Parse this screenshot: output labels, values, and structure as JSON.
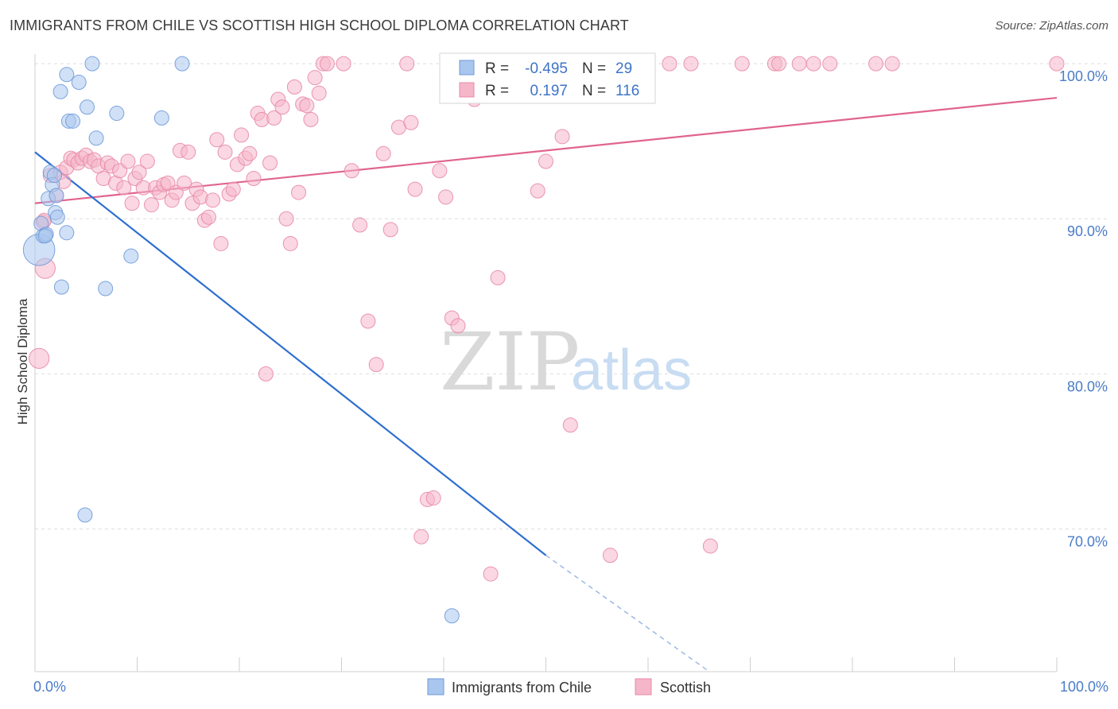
{
  "header": {
    "title": "IMMIGRANTS FROM CHILE VS SCOTTISH HIGH SCHOOL DIPLOMA CORRELATION CHART",
    "source": "Source: ZipAtlas.com"
  },
  "watermark": {
    "zip": "ZIP",
    "atlas": "atlas"
  },
  "stats": {
    "r_label": "R =",
    "n_label": "N =",
    "rows": [
      {
        "r": "-0.495",
        "n": "29",
        "color": "#a9c6ee"
      },
      {
        "r": "0.197",
        "n": "116",
        "color": "#f6b6ca"
      }
    ]
  },
  "chart_data": {
    "type": "scatter",
    "title": "IMMIGRANTS FROM CHILE VS SCOTTISH HIGH SCHOOL DIPLOMA CORRELATION CHART",
    "xlabel": "",
    "ylabel": "High School Diploma",
    "xlim": [
      0,
      100
    ],
    "ylim": [
      60.8,
      101.8
    ],
    "x_tick_labels": [
      "0.0%",
      "100.0%"
    ],
    "y_ticks": [
      {
        "value": 70,
        "label": "70.0%"
      },
      {
        "value": 80,
        "label": "80.0%"
      },
      {
        "value": 90,
        "label": "90.0%"
      },
      {
        "value": 100,
        "label": "100.0%"
      }
    ],
    "grid": true,
    "legend_position": "bottom-center",
    "series": [
      {
        "name": "Immigrants from Chile",
        "color": "#a9c6ee",
        "stroke": "#6f9ad8",
        "trend_color": "#2e6fd0",
        "trend": {
          "x0": 0,
          "y0": 94.3,
          "x1": 50,
          "y1": 68.3,
          "x_dash_end": 66,
          "y_dash_end": 60.8
        },
        "points": [
          [
            0.4,
            88.0,
            2.2
          ],
          [
            0.6,
            89.7,
            1
          ],
          [
            0.8,
            88.9,
            1
          ],
          [
            1.1,
            89.0,
            1
          ],
          [
            1.3,
            91.3,
            1
          ],
          [
            1.5,
            93.0,
            1
          ],
          [
            1.7,
            92.2,
            1
          ],
          [
            1.9,
            92.8,
            1
          ],
          [
            2.0,
            90.4,
            1
          ],
          [
            2.1,
            91.5,
            1
          ],
          [
            2.2,
            90.1,
            1
          ],
          [
            2.5,
            98.2,
            1
          ],
          [
            2.6,
            85.6,
            1
          ],
          [
            3.1,
            99.3,
            1
          ],
          [
            3.1,
            89.1,
            1
          ],
          [
            3.3,
            96.3,
            1
          ],
          [
            3.7,
            96.3,
            1
          ],
          [
            4.3,
            98.8,
            1
          ],
          [
            4.9,
            70.9,
            1
          ],
          [
            5.1,
            97.2,
            1
          ],
          [
            5.6,
            100.0,
            1
          ],
          [
            6.0,
            95.2,
            1
          ],
          [
            6.9,
            85.5,
            1
          ],
          [
            8.0,
            96.8,
            1
          ],
          [
            9.4,
            87.6,
            1
          ],
          [
            12.4,
            96.5,
            1
          ],
          [
            14.4,
            100.0,
            1
          ],
          [
            40.8,
            64.4,
            1
          ],
          [
            1.0,
            88.9,
            1
          ]
        ]
      },
      {
        "name": "Scottish",
        "color": "#f6b6ca",
        "stroke": "#e88aa8",
        "trend_color": "#e0648f",
        "trend": {
          "x0": 0,
          "y0": 91.0,
          "x1": 100,
          "y1": 97.8
        },
        "points": [
          [
            0.4,
            81.0,
            1.4
          ],
          [
            0.8,
            89.8,
            1
          ],
          [
            1.0,
            86.8,
            1.4
          ],
          [
            1.5,
            92.8,
            1
          ],
          [
            2.1,
            91.5,
            1
          ],
          [
            2.5,
            93.0,
            1
          ],
          [
            2.8,
            92.4,
            1
          ],
          [
            3.1,
            93.3,
            1
          ],
          [
            3.5,
            93.9,
            1
          ],
          [
            3.8,
            93.8,
            1
          ],
          [
            4.2,
            93.6,
            1
          ],
          [
            4.6,
            93.9,
            1
          ],
          [
            5.0,
            94.1,
            1
          ],
          [
            5.4,
            93.7,
            1
          ],
          [
            5.8,
            93.8,
            1
          ],
          [
            6.2,
            93.4,
            1
          ],
          [
            6.7,
            92.6,
            1
          ],
          [
            7.1,
            93.6,
            1
          ],
          [
            7.5,
            93.4,
            1
          ],
          [
            7.9,
            92.3,
            1
          ],
          [
            8.3,
            93.1,
            1
          ],
          [
            8.7,
            92.0,
            1
          ],
          [
            9.1,
            93.7,
            1
          ],
          [
            9.5,
            91.0,
            1
          ],
          [
            9.8,
            92.6,
            1
          ],
          [
            10.2,
            93.0,
            1
          ],
          [
            10.6,
            92.0,
            1
          ],
          [
            11.0,
            93.7,
            1
          ],
          [
            11.4,
            90.9,
            1
          ],
          [
            11.8,
            92.0,
            1
          ],
          [
            12.2,
            91.7,
            1
          ],
          [
            12.6,
            92.2,
            1
          ],
          [
            13.0,
            92.3,
            1
          ],
          [
            13.4,
            91.2,
            1
          ],
          [
            13.8,
            91.7,
            1
          ],
          [
            14.2,
            94.4,
            1
          ],
          [
            14.6,
            92.3,
            1
          ],
          [
            15.0,
            94.3,
            1
          ],
          [
            15.4,
            91.0,
            1
          ],
          [
            15.8,
            91.9,
            1
          ],
          [
            16.2,
            91.4,
            1
          ],
          [
            16.6,
            89.9,
            1
          ],
          [
            17.0,
            90.1,
            1
          ],
          [
            17.4,
            91.2,
            1
          ],
          [
            17.8,
            95.1,
            1
          ],
          [
            18.2,
            88.4,
            1
          ],
          [
            18.6,
            94.3,
            1
          ],
          [
            19.0,
            91.6,
            1
          ],
          [
            19.4,
            91.9,
            1
          ],
          [
            19.8,
            93.5,
            1
          ],
          [
            20.2,
            95.4,
            1
          ],
          [
            20.6,
            93.9,
            1
          ],
          [
            21.0,
            94.2,
            1
          ],
          [
            21.4,
            92.6,
            1
          ],
          [
            21.8,
            96.8,
            1
          ],
          [
            22.2,
            96.4,
            1
          ],
          [
            22.6,
            80.0,
            1
          ],
          [
            23.0,
            93.6,
            1
          ],
          [
            23.4,
            96.5,
            1
          ],
          [
            23.8,
            97.7,
            1
          ],
          [
            24.2,
            97.2,
            1
          ],
          [
            24.6,
            90.0,
            1
          ],
          [
            25.0,
            88.4,
            1
          ],
          [
            25.4,
            98.5,
            1
          ],
          [
            25.8,
            91.7,
            1
          ],
          [
            26.2,
            97.4,
            1
          ],
          [
            26.6,
            97.3,
            1
          ],
          [
            27.0,
            96.4,
            1
          ],
          [
            27.4,
            99.1,
            1
          ],
          [
            27.8,
            98.1,
            1
          ],
          [
            28.2,
            100.0,
            1
          ],
          [
            28.6,
            100.0,
            1
          ],
          [
            30.2,
            100.0,
            1
          ],
          [
            31.0,
            93.1,
            1
          ],
          [
            31.8,
            89.6,
            1
          ],
          [
            32.6,
            83.4,
            1
          ],
          [
            33.4,
            80.6,
            1
          ],
          [
            34.1,
            94.2,
            1
          ],
          [
            34.8,
            89.3,
            1
          ],
          [
            35.6,
            95.9,
            1
          ],
          [
            36.4,
            100.0,
            1
          ],
          [
            36.8,
            96.2,
            1
          ],
          [
            37.2,
            91.9,
            1
          ],
          [
            37.8,
            69.5,
            1
          ],
          [
            38.4,
            71.9,
            1
          ],
          [
            39.0,
            72.0,
            1
          ],
          [
            39.6,
            93.1,
            1
          ],
          [
            40.2,
            91.4,
            1
          ],
          [
            40.8,
            83.6,
            1
          ],
          [
            41.4,
            83.1,
            1
          ],
          [
            42.0,
            100.0,
            1
          ],
          [
            43.0,
            97.7,
            1
          ],
          [
            44.6,
            67.1,
            1
          ],
          [
            45.3,
            86.2,
            1
          ],
          [
            46.2,
            100.0,
            1
          ],
          [
            47.4,
            100.0,
            1
          ],
          [
            49.2,
            91.8,
            1
          ],
          [
            50.0,
            93.7,
            1
          ],
          [
            51.6,
            95.3,
            1
          ],
          [
            52.4,
            76.7,
            1
          ],
          [
            54.2,
            100.0,
            1
          ],
          [
            56.3,
            68.3,
            1
          ],
          [
            57.4,
            100.0,
            1
          ],
          [
            62.1,
            100.0,
            1
          ],
          [
            64.2,
            100.0,
            1
          ],
          [
            66.1,
            68.9,
            1
          ],
          [
            69.2,
            100.0,
            1
          ],
          [
            72.4,
            100.0,
            1
          ],
          [
            72.8,
            100.0,
            1
          ],
          [
            74.8,
            100.0,
            1
          ],
          [
            76.2,
            100.0,
            1
          ],
          [
            77.8,
            100.0,
            1
          ],
          [
            82.3,
            100.0,
            1
          ],
          [
            83.9,
            100.0,
            1
          ],
          [
            100.0,
            100.0,
            1
          ],
          [
            0.9,
            89.9,
            1
          ]
        ]
      }
    ]
  }
}
